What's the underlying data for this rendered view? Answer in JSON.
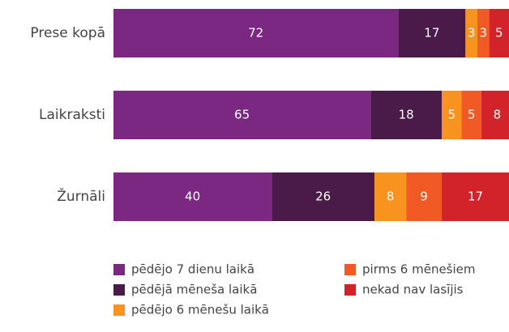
{
  "chart_data": {
    "type": "stacked-barh",
    "categories": [
      "Prese kopā",
      "Laikraksti",
      "Žurnāli"
    ],
    "series": [
      {
        "name": "pēdējo 7 dienu laikā",
        "color": "#7b2882",
        "values": [
          72,
          65,
          40
        ]
      },
      {
        "name": "pēdējā mēneša laikā",
        "color": "#4a1a48",
        "values": [
          17,
          18,
          26
        ]
      },
      {
        "name": "pēdējo 6 mēnešu laikā",
        "color": "#f7931e",
        "values": [
          3,
          5,
          8
        ]
      },
      {
        "name": "pirms 6 mēnešiem",
        "color": "#f15a24",
        "values": [
          3,
          5,
          9
        ]
      },
      {
        "name": "nekad nav lasījis",
        "color": "#d2232a",
        "values": [
          5,
          8,
          17
        ]
      }
    ],
    "xlim": [
      0,
      100
    ]
  }
}
